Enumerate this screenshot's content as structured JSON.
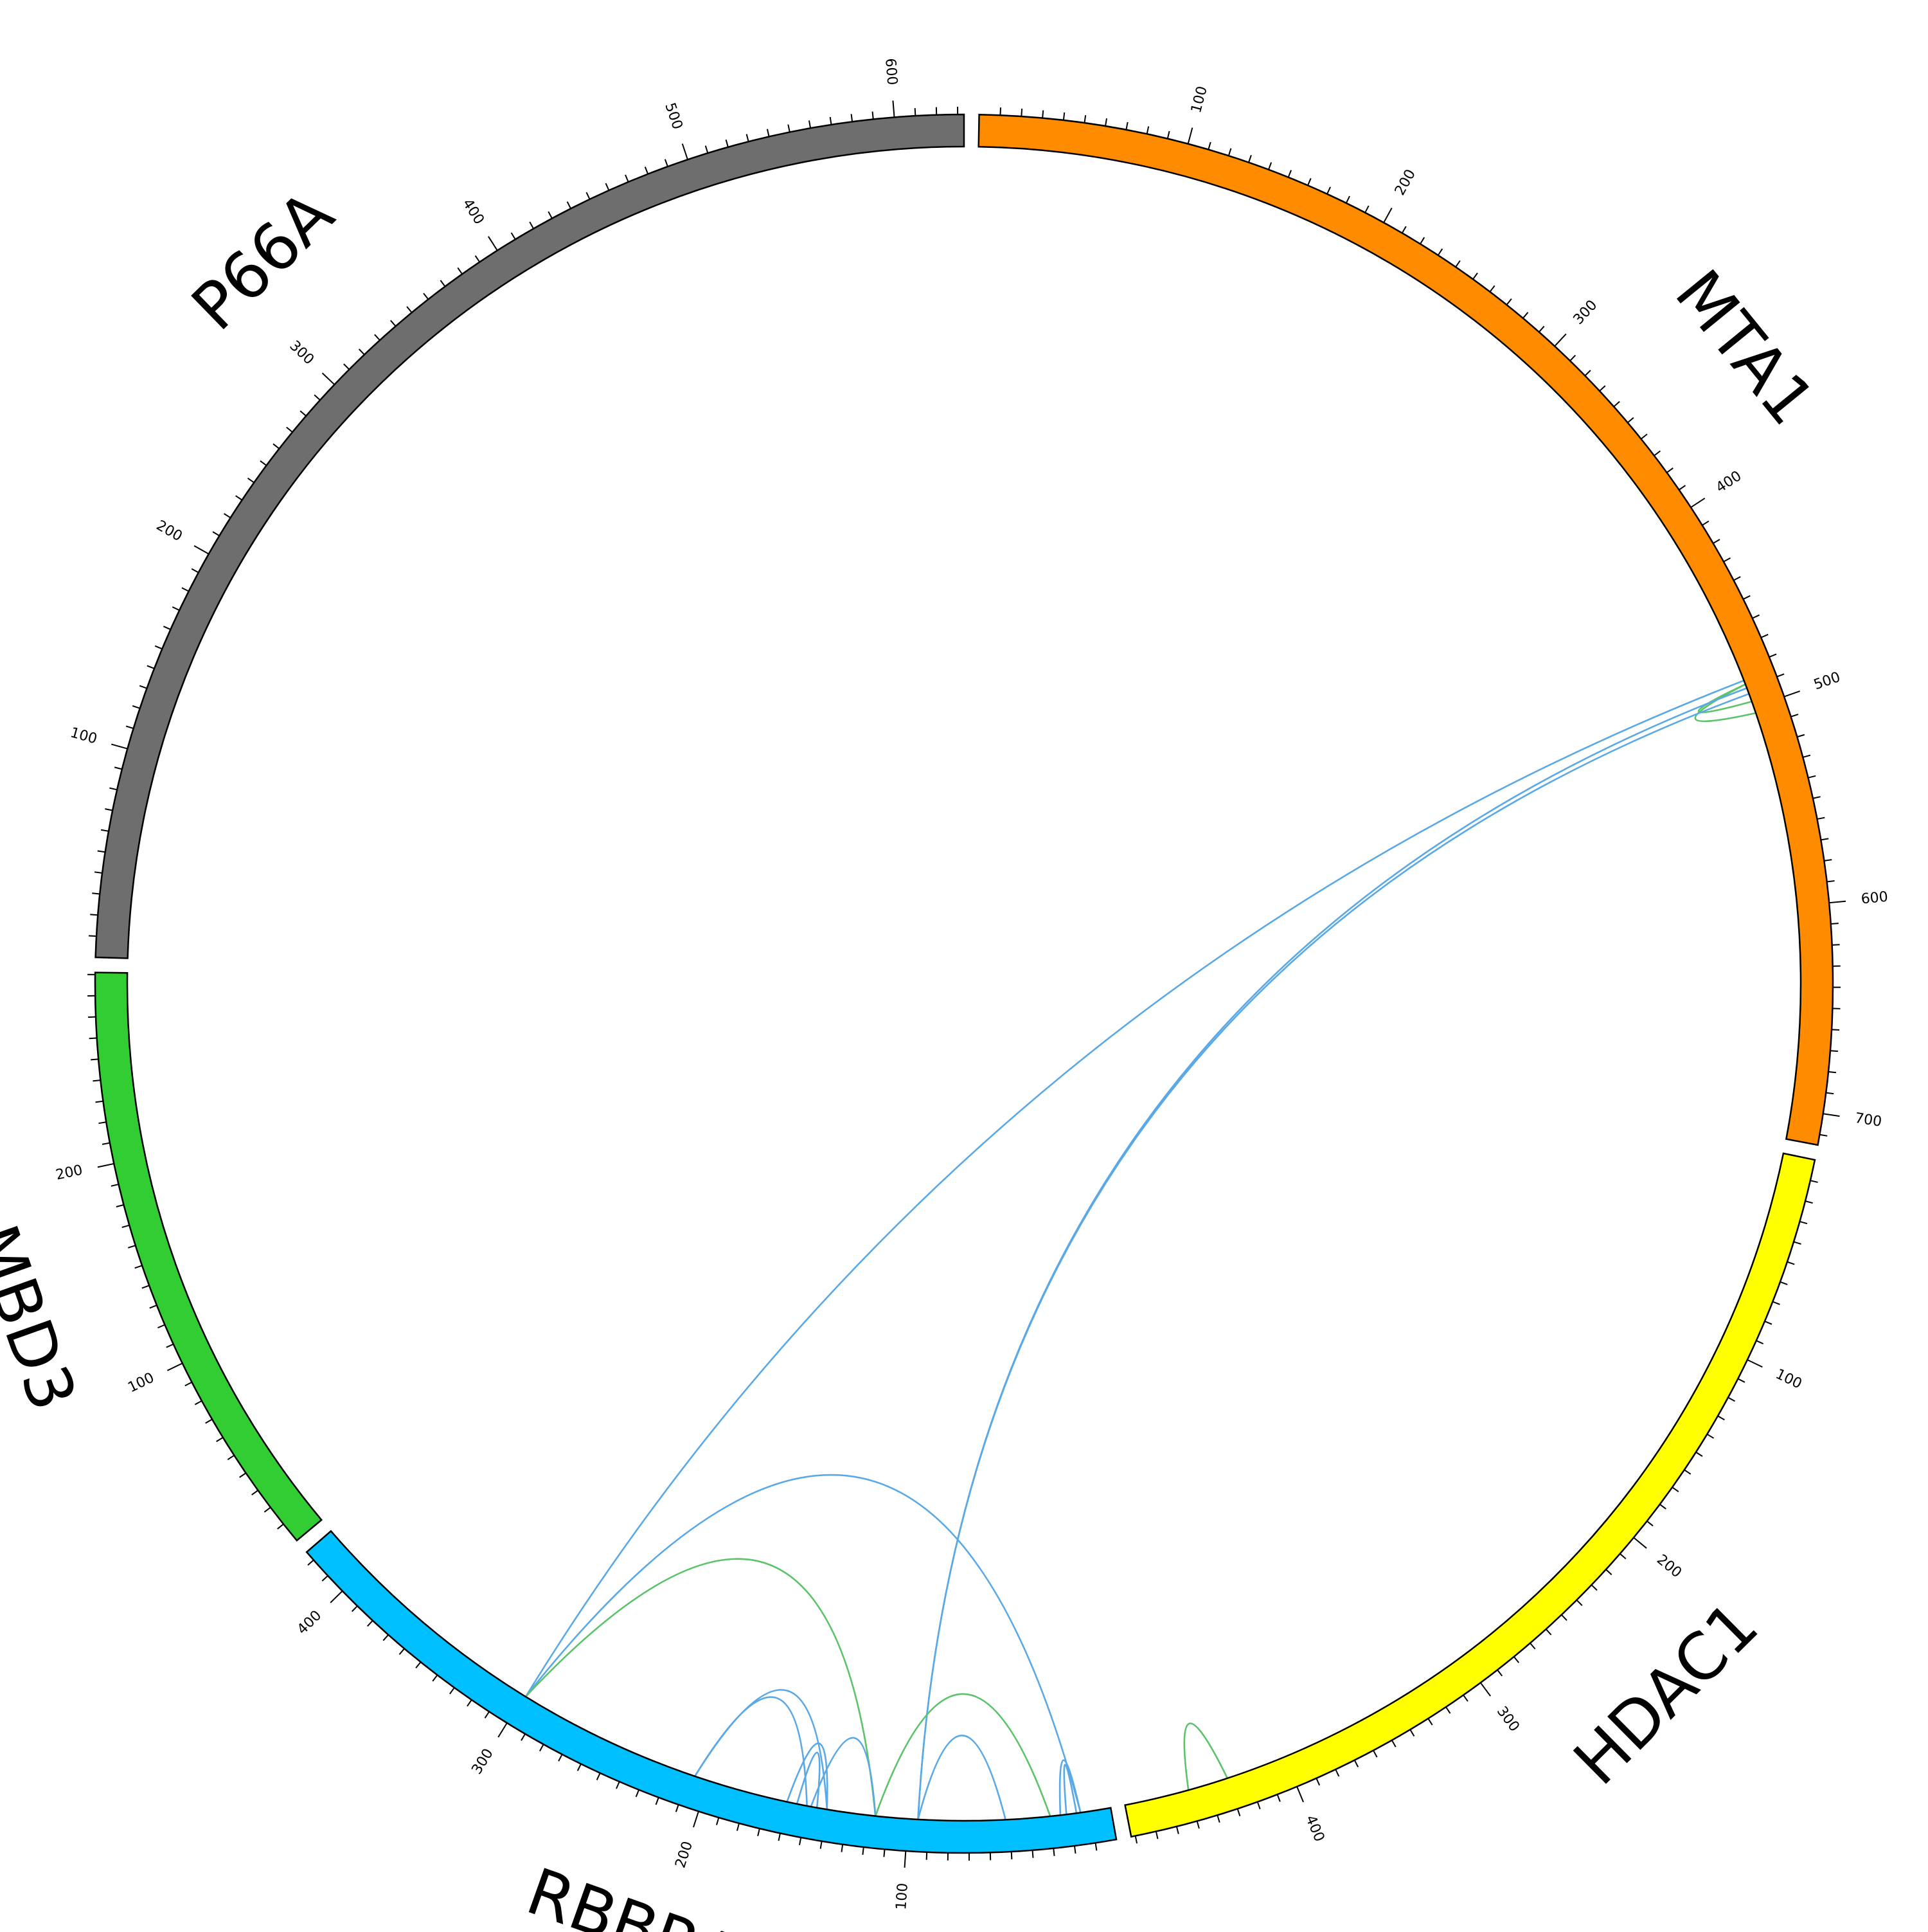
{
  "diagram": {
    "type": "circos",
    "tick_step": 10,
    "label_step": 100,
    "segments": [
      {
        "name": "MTA1",
        "length": 715,
        "color": "#ff8c00",
        "tick_labels": [
          "100",
          "200",
          "300",
          "400",
          "500",
          "600",
          "700"
        ]
      },
      {
        "name": "HDAC1",
        "length": 482,
        "color": "#ffff00",
        "tick_labels": [
          "100",
          "200",
          "300",
          "400"
        ]
      },
      {
        "name": "RBBP4",
        "length": 425,
        "color": "#00bfff",
        "tick_labels": [
          "100",
          "200",
          "300",
          "400"
        ]
      },
      {
        "name": "MBD3",
        "length": 291,
        "color": "#32cd32",
        "tick_labels": [
          "100",
          "200"
        ]
      },
      {
        "name": "P66A",
        "length": 633,
        "color": "#6e6e6e",
        "tick_labels": [
          "100",
          "200",
          "300",
          "400",
          "500",
          "600"
        ]
      }
    ],
    "link_colors": {
      "blue": "#5aa9e6",
      "green": "#5cc36a"
    },
    "links": [
      {
        "from": [
          "MTA1",
          488
        ],
        "to": [
          "MTA1",
          503
        ],
        "color": "green"
      },
      {
        "from": [
          "MTA1",
          488
        ],
        "to": [
          "MTA1",
          497
        ],
        "color": "green"
      },
      {
        "from": [
          "MTA1",
          490
        ],
        "to": [
          "RBBP4",
          95
        ],
        "color": "blue"
      },
      {
        "from": [
          "MTA1",
          493
        ],
        "to": [
          "RBBP4",
          95
        ],
        "color": "blue"
      },
      {
        "from": [
          "MTA1",
          486
        ],
        "to": [
          "RBBP4",
          299
        ],
        "color": "blue"
      },
      {
        "from": [
          "RBBP4",
          299
        ],
        "to": [
          "RBBP4",
          15
        ],
        "color": "blue"
      },
      {
        "from": [
          "RBBP4",
          299
        ],
        "to": [
          "RBBP4",
          116
        ],
        "color": "green"
      },
      {
        "from": [
          "RBBP4",
          207
        ],
        "to": [
          "RBBP4",
          150
        ],
        "color": "blue"
      },
      {
        "from": [
          "RBBP4",
          207
        ],
        "to": [
          "RBBP4",
          140
        ],
        "color": "blue"
      },
      {
        "from": [
          "RBBP4",
          160
        ],
        "to": [
          "RBBP4",
          140
        ],
        "color": "blue"
      },
      {
        "from": [
          "RBBP4",
          155
        ],
        "to": [
          "RBBP4",
          145
        ],
        "color": "blue"
      },
      {
        "from": [
          "RBBP4",
          148
        ],
        "to": [
          "RBBP4",
          116
        ],
        "color": "blue"
      },
      {
        "from": [
          "RBBP4",
          116
        ],
        "to": [
          "RBBP4",
          30
        ],
        "color": "green"
      },
      {
        "from": [
          "RBBP4",
          95
        ],
        "to": [
          "RBBP4",
          52
        ],
        "color": "blue"
      },
      {
        "from": [
          "RBBP4",
          25
        ],
        "to": [
          "RBBP4",
          15
        ],
        "color": "blue"
      },
      {
        "from": [
          "RBBP4",
          22
        ],
        "to": [
          "RBBP4",
          17
        ],
        "color": "blue"
      },
      {
        "from": [
          "HDAC1",
          430
        ],
        "to": [
          "HDAC1",
          450
        ],
        "color": "green"
      }
    ]
  }
}
